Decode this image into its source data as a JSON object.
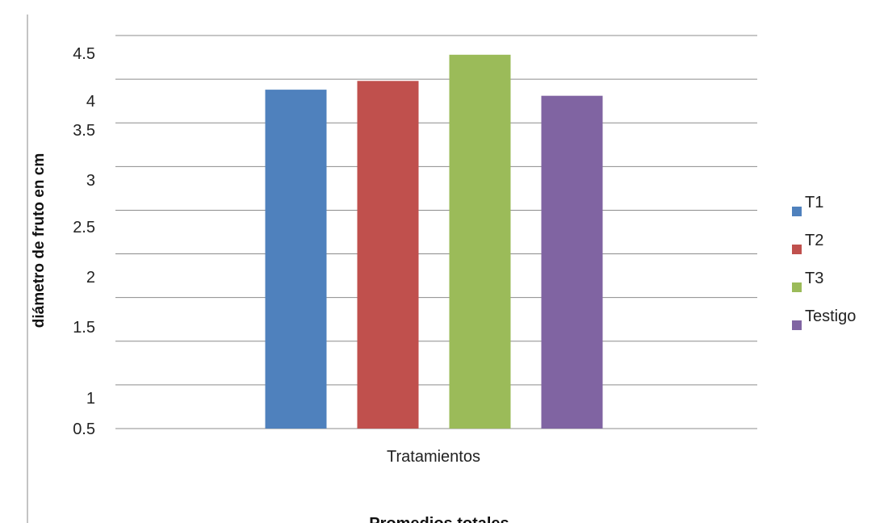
{
  "chart_data": {
    "type": "bar",
    "categories": [
      "Tratamientos"
    ],
    "series": [
      {
        "name": "T1",
        "values": [
          3.88
        ],
        "color": "#4F81BD"
      },
      {
        "name": "T2",
        "values": [
          3.98
        ],
        "color": "#C0504D"
      },
      {
        "name": "T3",
        "values": [
          4.28
        ],
        "color": "#9BBB59"
      },
      {
        "name": "Testigo",
        "values": [
          3.81
        ],
        "color": "#8064A2"
      }
    ],
    "ylabel": "diámetro de fruto en cm",
    "xlabel": "Promedios totales",
    "ylim": [
      0,
      4.5
    ],
    "y_tick_labels": [
      "0.5",
      "1",
      "1.5",
      "2",
      "2.5",
      "3",
      "3.5",
      "4",
      "4.5"
    ],
    "grid": true,
    "legend_position": "right"
  }
}
